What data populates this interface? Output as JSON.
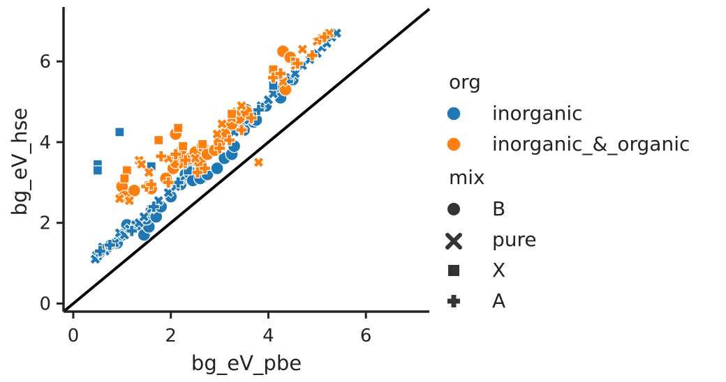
{
  "chart_data": {
    "type": "scatter",
    "title": "",
    "xlabel": "bg_eV_pbe",
    "ylabel": "bg_eV_hse",
    "xlim": [
      -0.2,
      7.3
    ],
    "ylim": [
      -0.2,
      7.35
    ],
    "xticks": [
      0,
      2,
      4,
      6
    ],
    "yticks": [
      0,
      2,
      4,
      6
    ],
    "x_tick_labels": [
      "0",
      "2",
      "4",
      "6"
    ],
    "y_tick_labels": [
      "0",
      "2",
      "4",
      "6"
    ],
    "grid": false,
    "reference_line": {
      "from": [
        -0.2,
        -0.2
      ],
      "to": [
        7.3,
        7.3
      ],
      "color": "#000000"
    },
    "legend": {
      "placement": "right",
      "hue_title": "org",
      "hue_entries": [
        {
          "label": "inorganic",
          "color": "#1f77b4"
        },
        {
          "label": "inorganic_&_organic",
          "color": "#ff7f0e"
        }
      ],
      "style_title": "mix",
      "style_entries": [
        {
          "label": "B",
          "marker": "circle"
        },
        {
          "label": "pure",
          "marker": "x"
        },
        {
          "label": "X",
          "marker": "square"
        },
        {
          "label": "A",
          "marker": "plus"
        }
      ]
    },
    "series": [
      {
        "org": "inorganic",
        "mix": "B",
        "color": "#1f77b4",
        "marker": "circle",
        "points": [
          [
            0.5,
            1.2
          ],
          [
            0.7,
            1.4
          ],
          [
            0.9,
            1.5
          ],
          [
            1.0,
            1.7
          ],
          [
            1.1,
            1.95
          ],
          [
            1.3,
            1.95
          ],
          [
            1.45,
            1.7
          ],
          [
            1.55,
            1.9
          ],
          [
            1.5,
            2.1
          ],
          [
            1.6,
            2.3
          ],
          [
            1.7,
            2.15
          ],
          [
            1.8,
            2.4
          ],
          [
            2.0,
            2.65
          ],
          [
            2.2,
            2.95
          ],
          [
            2.3,
            3.2
          ],
          [
            2.45,
            3.05
          ],
          [
            2.6,
            3.1
          ],
          [
            2.75,
            3.2
          ],
          [
            2.95,
            3.35
          ],
          [
            3.1,
            3.6
          ],
          [
            3.25,
            3.7
          ],
          [
            3.3,
            3.9
          ],
          [
            3.5,
            4.3
          ],
          [
            3.55,
            4.8
          ],
          [
            3.7,
            4.5
          ],
          [
            3.75,
            4.55
          ],
          [
            3.95,
            4.9
          ],
          [
            4.25,
            5.1
          ],
          [
            4.4,
            5.5
          ],
          [
            4.5,
            5.55
          ]
        ]
      },
      {
        "org": "inorganic",
        "mix": "pure",
        "color": "#1f77b4",
        "marker": "x",
        "points": [
          [
            0.45,
            1.1
          ],
          [
            0.55,
            1.25
          ],
          [
            0.65,
            1.3
          ],
          [
            0.6,
            1.4
          ],
          [
            0.75,
            1.45
          ],
          [
            0.85,
            1.5
          ],
          [
            0.95,
            1.75
          ],
          [
            1.05,
            1.7
          ],
          [
            1.15,
            1.85
          ],
          [
            1.35,
            2.0
          ],
          [
            1.45,
            2.15
          ],
          [
            1.6,
            2.35
          ],
          [
            1.75,
            2.55
          ],
          [
            1.95,
            2.75
          ],
          [
            2.1,
            2.9
          ],
          [
            2.2,
            3.05
          ],
          [
            2.4,
            3.4
          ],
          [
            2.55,
            3.5
          ],
          [
            2.7,
            3.65
          ],
          [
            2.85,
            3.8
          ],
          [
            3.0,
            3.9
          ],
          [
            3.15,
            4.05
          ],
          [
            3.3,
            4.25
          ],
          [
            3.45,
            4.4
          ],
          [
            3.6,
            4.55
          ],
          [
            3.7,
            4.75
          ],
          [
            3.85,
            4.9
          ],
          [
            4.0,
            5.05
          ],
          [
            4.1,
            5.2
          ],
          [
            4.25,
            5.35
          ],
          [
            4.45,
            5.6
          ],
          [
            4.55,
            5.7
          ],
          [
            4.7,
            5.9
          ],
          [
            4.85,
            6.05
          ],
          [
            5.0,
            6.2
          ],
          [
            5.1,
            6.35
          ],
          [
            5.2,
            6.45
          ],
          [
            5.3,
            6.6
          ],
          [
            5.4,
            6.7
          ]
        ]
      },
      {
        "org": "inorganic",
        "mix": "X",
        "color": "#1f77b4",
        "marker": "square",
        "points": [
          [
            0.95,
            4.25
          ],
          [
            0.5,
            3.45
          ],
          [
            0.5,
            3.3
          ],
          [
            1.6,
            3.4
          ],
          [
            2.35,
            3.3
          ],
          [
            2.6,
            3.55
          ],
          [
            4.1,
            5.4
          ]
        ]
      },
      {
        "org": "inorganic",
        "mix": "A",
        "color": "#1f77b4",
        "marker": "plus",
        "points": [
          [
            0.55,
            1.3
          ],
          [
            0.75,
            1.45
          ],
          [
            1.2,
            1.8
          ],
          [
            1.65,
            2.4
          ],
          [
            2.15,
            3.0
          ],
          [
            2.6,
            3.4
          ],
          [
            3.2,
            4.05
          ],
          [
            3.8,
            4.8
          ],
          [
            4.4,
            5.5
          ]
        ]
      },
      {
        "org": "inorganic_&_organic",
        "mix": "B",
        "color": "#ff7f0e",
        "marker": "circle",
        "points": [
          [
            1.0,
            2.9
          ],
          [
            1.05,
            2.65
          ],
          [
            1.25,
            2.8
          ],
          [
            1.6,
            2.85
          ],
          [
            1.9,
            3.1
          ],
          [
            2.05,
            3.35
          ],
          [
            2.1,
            3.5
          ],
          [
            2.2,
            3.75
          ],
          [
            2.1,
            4.2
          ],
          [
            2.4,
            3.6
          ],
          [
            2.5,
            3.75
          ],
          [
            2.6,
            3.5
          ],
          [
            2.65,
            3.9
          ],
          [
            2.75,
            3.7
          ],
          [
            2.9,
            3.8
          ],
          [
            3.0,
            4.0
          ],
          [
            3.1,
            4.2
          ],
          [
            3.25,
            4.45
          ],
          [
            3.4,
            4.6
          ],
          [
            3.55,
            4.75
          ],
          [
            4.3,
            6.25
          ],
          [
            4.35,
            5.3
          ],
          [
            4.45,
            6.1
          ]
        ]
      },
      {
        "org": "inorganic_&_organic",
        "mix": "pure",
        "color": "#ff7f0e",
        "marker": "x",
        "points": [
          [
            0.95,
            2.6
          ],
          [
            1.15,
            2.55
          ],
          [
            1.35,
            3.55
          ],
          [
            1.4,
            3.45
          ],
          [
            1.55,
            3.25
          ],
          [
            1.95,
            3.6
          ],
          [
            2.25,
            3.45
          ],
          [
            2.5,
            3.6
          ],
          [
            2.95,
            4.2
          ],
          [
            3.05,
            4.45
          ],
          [
            3.25,
            4.6
          ],
          [
            3.35,
            4.75
          ],
          [
            3.45,
            4.9
          ],
          [
            3.8,
            3.5
          ],
          [
            4.3,
            5.5
          ],
          [
            4.55,
            5.9
          ],
          [
            4.7,
            6.3
          ],
          [
            5.0,
            6.5
          ],
          [
            5.25,
            6.7
          ]
        ]
      },
      {
        "org": "inorganic_&_organic",
        "mix": "X",
        "color": "#ff7f0e",
        "marker": "square",
        "points": [
          [
            1.1,
            3.3
          ],
          [
            1.05,
            3.1
          ],
          [
            1.75,
            4.05
          ],
          [
            2.15,
            4.35
          ],
          [
            2.25,
            3.9
          ],
          [
            2.65,
            3.95
          ],
          [
            3.25,
            4.7
          ],
          [
            4.1,
            5.8
          ],
          [
            4.55,
            6.0
          ]
        ]
      },
      {
        "org": "inorganic_&_organic",
        "mix": "A",
        "color": "#ff7f0e",
        "marker": "plus",
        "points": [
          [
            1.5,
            2.9
          ],
          [
            1.6,
            2.95
          ],
          [
            1.8,
            3.65
          ],
          [
            1.95,
            3.0
          ],
          [
            2.1,
            3.7
          ],
          [
            2.3,
            3.55
          ],
          [
            2.55,
            3.25
          ],
          [
            2.7,
            3.35
          ],
          [
            3.0,
            3.85
          ],
          [
            3.2,
            4.05
          ],
          [
            3.45,
            4.3
          ],
          [
            3.65,
            4.6
          ],
          [
            4.1,
            5.6
          ],
          [
            4.25,
            5.7
          ],
          [
            4.6,
            5.95
          ],
          [
            4.9,
            6.15
          ],
          [
            5.05,
            6.55
          ],
          [
            5.15,
            6.6
          ]
        ]
      }
    ]
  }
}
